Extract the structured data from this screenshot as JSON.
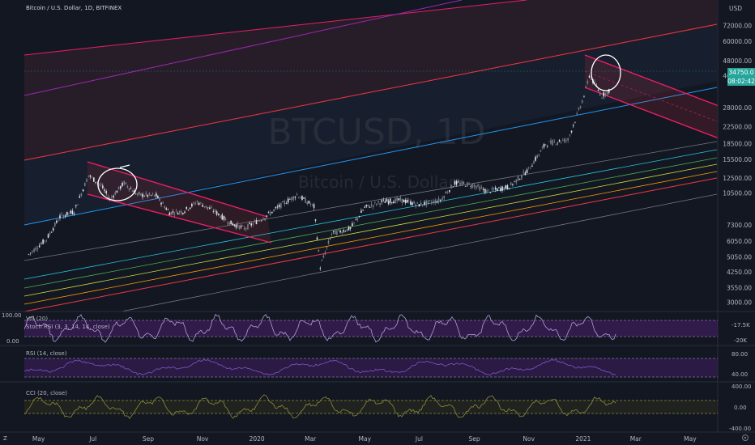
{
  "header": {
    "symbol_title": "Bitcoin / U.S. Dollar, 1D, BITFINEX"
  },
  "watermark": {
    "main": "BTCUSD, 1D",
    "sub": "Bitcoin / U.S. Dollar"
  },
  "price_axis": {
    "currency": "USD",
    "ticks": [
      "72000.00",
      "60000.00",
      "48000.00",
      "40500.00",
      "28000.00",
      "22500.00",
      "18500.00",
      "15500.00",
      "12500.00",
      "10500.00",
      "7300.00",
      "6050.00",
      "5050.00",
      "4250.00",
      "3550.00",
      "3000.00"
    ]
  },
  "price_tags": {
    "last_price": "34750.0",
    "countdown": "08:02:42",
    "accent_color": "#26a69a"
  },
  "time_axis": {
    "ticks": [
      "May",
      "Jul",
      "Sep",
      "Nov",
      "2020",
      "Mar",
      "May",
      "Jul",
      "Sep",
      "Nov",
      "2021",
      "Mar",
      "May"
    ]
  },
  "panes": {
    "stoch": {
      "vol_label": "Vol (20)",
      "label": "Stoch RSI (3, 3, 14, 14, close)",
      "left_ticks": [
        "100.00",
        "0.00"
      ],
      "right_ticks": [
        "-17.5K",
        "-20K"
      ]
    },
    "rsi": {
      "label": "RSI (14, close)",
      "right_ticks": [
        "80.00",
        "40.00"
      ]
    },
    "cci": {
      "label": "CCI (20, close)",
      "right_ticks": [
        "400.00",
        "0.00",
        "-400.00"
      ]
    }
  },
  "footer": {
    "scale_left": "Z"
  },
  "colors": {
    "background": "#131722",
    "up": "#e0e3eb",
    "down": "#e0e3eb",
    "channel_red": "#f23645",
    "channel_magenta": "#e91e63",
    "trend_blue": "#2196f3",
    "trend_purple": "#9c27b0",
    "oscillator_fill": "#4a1f6e",
    "oscillator_line": "#b39ddb"
  },
  "chart_data": {
    "type": "candlestick",
    "title": "Bitcoin / U.S. Dollar, 1D, BITFINEX",
    "y_scale": "log",
    "ylim": [
      2700,
      80000
    ],
    "x_range": [
      "2019-04-15",
      "2021-06-01"
    ],
    "series": [
      {
        "name": "BTCUSD",
        "points": [
          {
            "x": "2019-04-20",
            "y": 5200
          },
          {
            "x": "2019-05-10",
            "y": 6200
          },
          {
            "x": "2019-05-25",
            "y": 8000
          },
          {
            "x": "2019-06-10",
            "y": 8500
          },
          {
            "x": "2019-06-26",
            "y": 12900
          },
          {
            "x": "2019-07-10",
            "y": 11500
          },
          {
            "x": "2019-07-20",
            "y": 9800
          },
          {
            "x": "2019-08-05",
            "y": 11800
          },
          {
            "x": "2019-08-20",
            "y": 10300
          },
          {
            "x": "2019-09-10",
            "y": 10200
          },
          {
            "x": "2019-09-25",
            "y": 8400
          },
          {
            "x": "2019-10-10",
            "y": 8500
          },
          {
            "x": "2019-10-26",
            "y": 9500
          },
          {
            "x": "2019-11-15",
            "y": 8500
          },
          {
            "x": "2019-12-01",
            "y": 7500
          },
          {
            "x": "2019-12-18",
            "y": 7000
          },
          {
            "x": "2020-01-10",
            "y": 8000
          },
          {
            "x": "2020-02-01",
            "y": 9400
          },
          {
            "x": "2020-02-15",
            "y": 10300
          },
          {
            "x": "2020-03-05",
            "y": 9000
          },
          {
            "x": "2020-03-12",
            "y": 4500
          },
          {
            "x": "2020-03-25",
            "y": 6600
          },
          {
            "x": "2020-04-15",
            "y": 7000
          },
          {
            "x": "2020-05-01",
            "y": 8900
          },
          {
            "x": "2020-05-20",
            "y": 9500
          },
          {
            "x": "2020-06-10",
            "y": 9700
          },
          {
            "x": "2020-07-01",
            "y": 9200
          },
          {
            "x": "2020-07-25",
            "y": 9700
          },
          {
            "x": "2020-08-10",
            "y": 11800
          },
          {
            "x": "2020-09-01",
            "y": 11500
          },
          {
            "x": "2020-09-15",
            "y": 10700
          },
          {
            "x": "2020-10-10",
            "y": 11300
          },
          {
            "x": "2020-11-01",
            "y": 13800
          },
          {
            "x": "2020-11-20",
            "y": 18500
          },
          {
            "x": "2020-12-15",
            "y": 19400
          },
          {
            "x": "2021-01-02",
            "y": 32000
          },
          {
            "x": "2021-01-08",
            "y": 40500
          },
          {
            "x": "2021-01-22",
            "y": 32000
          },
          {
            "x": "2021-02-01",
            "y": 34750
          }
        ]
      }
    ],
    "annotations": [
      "circle around Jul 2019 consolidation",
      "circle around Jan 2021 consolidation"
    ]
  }
}
